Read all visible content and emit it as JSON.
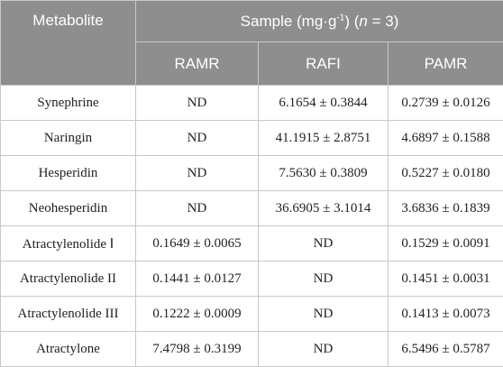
{
  "table": {
    "header": {
      "metabolite": "Metabolite",
      "sample_prefix": "Sample (mg·g",
      "sample_sup": "-1",
      "sample_mid": ") (",
      "sample_n": "n",
      "sample_suffix": " = 3)",
      "columns": [
        "RAMR",
        "RAFI",
        "PAMR"
      ]
    },
    "rows": [
      {
        "name": "Synephrine",
        "ramr": "ND",
        "rafi": "6.1654 ± 0.3844",
        "pamr": "0.2739 ± 0.0126"
      },
      {
        "name": "Naringin",
        "ramr": "ND",
        "rafi": "41.1915 ± 2.8751",
        "pamr": "4.6897 ± 0.1588"
      },
      {
        "name": "Hesperidin",
        "ramr": "ND",
        "rafi": "7.5630 ± 0.3809",
        "pamr": "0.5227 ± 0.0180"
      },
      {
        "name": "Neohesperidin",
        "ramr": "ND",
        "rafi": "36.6905 ± 3.1014",
        "pamr": "3.6836 ± 0.1839"
      },
      {
        "name": "Atractylenolide Ⅰ",
        "ramr": "0.1649 ± 0.0065",
        "rafi": "ND",
        "pamr": "0.1529 ± 0.0091"
      },
      {
        "name": "Atractylenolide II",
        "ramr": "0.1441 ± 0.0127",
        "rafi": "ND",
        "pamr": "0.1451 ± 0.0031"
      },
      {
        "name": "Atractylenolide III",
        "ramr": "0.1222 ± 0.0009",
        "rafi": "ND",
        "pamr": "0.1413 ± 0.0073"
      },
      {
        "name": "Atractylone",
        "ramr": "7.4798 ± 0.3199",
        "rafi": "ND",
        "pamr": "6.5496 ± 0.5787"
      }
    ]
  }
}
